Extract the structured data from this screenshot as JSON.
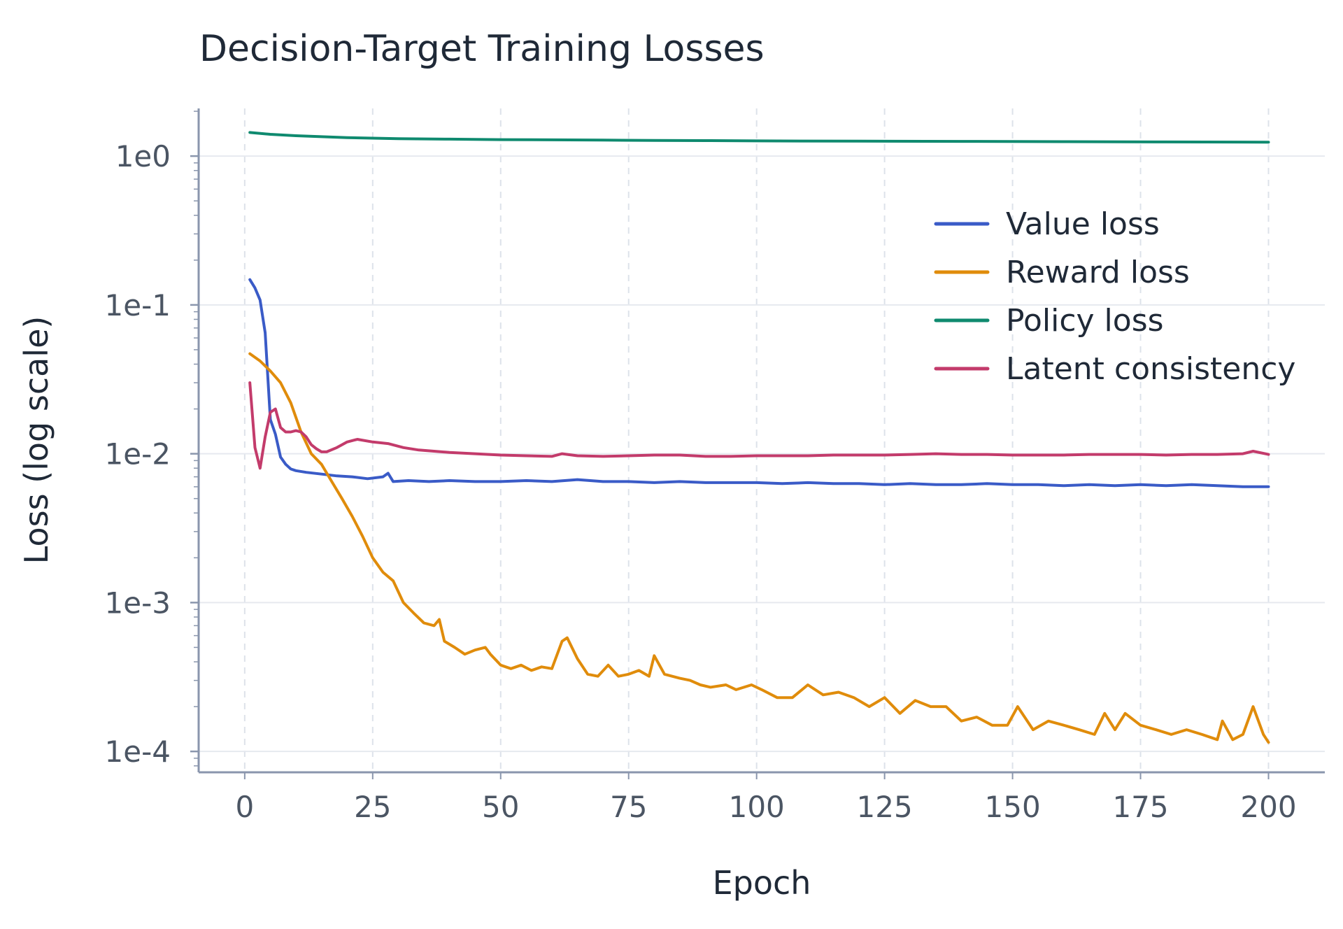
{
  "chart_data": {
    "type": "line",
    "title": "Decision-Target Training Losses",
    "xlabel": "Epoch",
    "ylabel": "Loss (log scale)",
    "yscale": "log",
    "xlim": [
      -9,
      211
    ],
    "ylim": [
      7.24e-05,
      2.09
    ],
    "grid": true,
    "legend_position": "top-right",
    "x_ticks": [
      0,
      25,
      50,
      75,
      100,
      125,
      150,
      175,
      200
    ],
    "x_tick_labels": [
      "0",
      "25",
      "50",
      "75",
      "100",
      "125",
      "150",
      "175",
      "200"
    ],
    "y_ticks": [
      1,
      0.1,
      0.01,
      0.001,
      0.0001
    ],
    "y_tick_labels": [
      "1e0",
      "1e-1",
      "1e-2",
      "1e-3",
      "1e-4"
    ],
    "series": [
      {
        "name": "Value loss",
        "color": "#3a5bc7",
        "points": [
          [
            1,
            0.148
          ],
          [
            2,
            0.13
          ],
          [
            3,
            0.108
          ],
          [
            4,
            0.065
          ],
          [
            5,
            0.017
          ],
          [
            6,
            0.0135
          ],
          [
            7,
            0.0095
          ],
          [
            8,
            0.0085
          ],
          [
            9,
            0.0079
          ],
          [
            10,
            0.0077
          ],
          [
            12,
            0.0075
          ],
          [
            15,
            0.0073
          ],
          [
            18,
            0.0071
          ],
          [
            21,
            0.007
          ],
          [
            24,
            0.0068
          ],
          [
            27,
            0.007
          ],
          [
            28,
            0.0074
          ],
          [
            29,
            0.0065
          ],
          [
            32,
            0.0066
          ],
          [
            36,
            0.0065
          ],
          [
            40,
            0.0066
          ],
          [
            45,
            0.0065
          ],
          [
            50,
            0.0065
          ],
          [
            55,
            0.0066
          ],
          [
            60,
            0.0065
          ],
          [
            65,
            0.0067
          ],
          [
            70,
            0.0065
          ],
          [
            75,
            0.0065
          ],
          [
            80,
            0.0064
          ],
          [
            85,
            0.0065
          ],
          [
            90,
            0.0064
          ],
          [
            95,
            0.0064
          ],
          [
            100,
            0.0064
          ],
          [
            105,
            0.0063
          ],
          [
            110,
            0.0064
          ],
          [
            115,
            0.0063
          ],
          [
            120,
            0.0063
          ],
          [
            125,
            0.0062
          ],
          [
            130,
            0.0063
          ],
          [
            135,
            0.0062
          ],
          [
            140,
            0.0062
          ],
          [
            145,
            0.0063
          ],
          [
            150,
            0.0062
          ],
          [
            155,
            0.0062
          ],
          [
            160,
            0.0061
          ],
          [
            165,
            0.0062
          ],
          [
            170,
            0.0061
          ],
          [
            175,
            0.0062
          ],
          [
            180,
            0.0061
          ],
          [
            185,
            0.0062
          ],
          [
            190,
            0.0061
          ],
          [
            195,
            0.006
          ],
          [
            200,
            0.006
          ]
        ]
      },
      {
        "name": "Reward loss",
        "color": "#e08c0b",
        "points": [
          [
            1,
            0.047
          ],
          [
            3,
            0.042
          ],
          [
            5,
            0.036
          ],
          [
            7,
            0.03
          ],
          [
            9,
            0.022
          ],
          [
            11,
            0.014
          ],
          [
            13,
            0.01
          ],
          [
            15,
            0.0085
          ],
          [
            17,
            0.0065
          ],
          [
            19,
            0.005
          ],
          [
            21,
            0.0038
          ],
          [
            23,
            0.0028
          ],
          [
            25,
            0.002
          ],
          [
            27,
            0.0016
          ],
          [
            29,
            0.0014
          ],
          [
            31,
            0.001
          ],
          [
            33,
            0.00085
          ],
          [
            35,
            0.00073
          ],
          [
            37,
            0.0007
          ],
          [
            38,
            0.00077
          ],
          [
            39,
            0.00055
          ],
          [
            41,
            0.0005
          ],
          [
            43,
            0.00045
          ],
          [
            45,
            0.00048
          ],
          [
            47,
            0.0005
          ],
          [
            48,
            0.00045
          ],
          [
            50,
            0.00038
          ],
          [
            52,
            0.00036
          ],
          [
            54,
            0.00038
          ],
          [
            56,
            0.00035
          ],
          [
            58,
            0.00037
          ],
          [
            60,
            0.00036
          ],
          [
            62,
            0.00055
          ],
          [
            63,
            0.00058
          ],
          [
            65,
            0.00042
          ],
          [
            67,
            0.00033
          ],
          [
            69,
            0.00032
          ],
          [
            71,
            0.00038
          ],
          [
            73,
            0.00032
          ],
          [
            75,
            0.00033
          ],
          [
            77,
            0.00035
          ],
          [
            79,
            0.00032
          ],
          [
            80,
            0.00044
          ],
          [
            82,
            0.00033
          ],
          [
            85,
            0.00031
          ],
          [
            87,
            0.0003
          ],
          [
            89,
            0.00028
          ],
          [
            91,
            0.00027
          ],
          [
            94,
            0.00028
          ],
          [
            96,
            0.00026
          ],
          [
            99,
            0.00028
          ],
          [
            101,
            0.00026
          ],
          [
            104,
            0.00023
          ],
          [
            107,
            0.00023
          ],
          [
            110,
            0.00028
          ],
          [
            113,
            0.00024
          ],
          [
            116,
            0.00025
          ],
          [
            119,
            0.00023
          ],
          [
            122,
            0.0002
          ],
          [
            125,
            0.00023
          ],
          [
            128,
            0.00018
          ],
          [
            131,
            0.00022
          ],
          [
            134,
            0.0002
          ],
          [
            137,
            0.0002
          ],
          [
            140,
            0.00016
          ],
          [
            143,
            0.00017
          ],
          [
            146,
            0.00015
          ],
          [
            149,
            0.00015
          ],
          [
            151,
            0.0002
          ],
          [
            154,
            0.00014
          ],
          [
            157,
            0.00016
          ],
          [
            160,
            0.00015
          ],
          [
            163,
            0.00014
          ],
          [
            166,
            0.00013
          ],
          [
            168,
            0.00018
          ],
          [
            170,
            0.00014
          ],
          [
            172,
            0.00018
          ],
          [
            175,
            0.00015
          ],
          [
            178,
            0.00014
          ],
          [
            181,
            0.00013
          ],
          [
            184,
            0.00014
          ],
          [
            187,
            0.00013
          ],
          [
            190,
            0.00012
          ],
          [
            191,
            0.00016
          ],
          [
            193,
            0.00012
          ],
          [
            195,
            0.00013
          ],
          [
            197,
            0.0002
          ],
          [
            199,
            0.00013
          ],
          [
            200,
            0.000115
          ]
        ]
      },
      {
        "name": "Policy loss",
        "color": "#0f8a6f",
        "points": [
          [
            1,
            1.44
          ],
          [
            5,
            1.4
          ],
          [
            10,
            1.37
          ],
          [
            15,
            1.35
          ],
          [
            20,
            1.33
          ],
          [
            30,
            1.31
          ],
          [
            40,
            1.3
          ],
          [
            50,
            1.29
          ],
          [
            60,
            1.285
          ],
          [
            70,
            1.28
          ],
          [
            80,
            1.275
          ],
          [
            90,
            1.27
          ],
          [
            100,
            1.265
          ],
          [
            120,
            1.26
          ],
          [
            140,
            1.255
          ],
          [
            160,
            1.25
          ],
          [
            180,
            1.245
          ],
          [
            200,
            1.24
          ]
        ]
      },
      {
        "name": "Latent consistency",
        "color": "#c33b6b",
        "points": [
          [
            1,
            0.03
          ],
          [
            2,
            0.011
          ],
          [
            3,
            0.008
          ],
          [
            4,
            0.013
          ],
          [
            5,
            0.019
          ],
          [
            6,
            0.02
          ],
          [
            7,
            0.015
          ],
          [
            8,
            0.014
          ],
          [
            9,
            0.014
          ],
          [
            10,
            0.0143
          ],
          [
            11,
            0.014
          ],
          [
            12,
            0.013
          ],
          [
            13,
            0.0115
          ],
          [
            14,
            0.0108
          ],
          [
            15,
            0.0103
          ],
          [
            16,
            0.0103
          ],
          [
            18,
            0.011
          ],
          [
            20,
            0.012
          ],
          [
            22,
            0.0125
          ],
          [
            25,
            0.012
          ],
          [
            28,
            0.0117
          ],
          [
            31,
            0.011
          ],
          [
            34,
            0.0106
          ],
          [
            37,
            0.0104
          ],
          [
            40,
            0.0102
          ],
          [
            45,
            0.01
          ],
          [
            50,
            0.0098
          ],
          [
            55,
            0.0097
          ],
          [
            60,
            0.0096
          ],
          [
            62,
            0.01
          ],
          [
            65,
            0.0097
          ],
          [
            70,
            0.0096
          ],
          [
            75,
            0.0097
          ],
          [
            80,
            0.0098
          ],
          [
            85,
            0.0098
          ],
          [
            90,
            0.0096
          ],
          [
            95,
            0.0096
          ],
          [
            100,
            0.0097
          ],
          [
            105,
            0.0097
          ],
          [
            110,
            0.0097
          ],
          [
            115,
            0.0098
          ],
          [
            120,
            0.0098
          ],
          [
            125,
            0.0098
          ],
          [
            130,
            0.0099
          ],
          [
            135,
            0.01
          ],
          [
            140,
            0.0099
          ],
          [
            145,
            0.0099
          ],
          [
            150,
            0.0098
          ],
          [
            155,
            0.0098
          ],
          [
            160,
            0.0098
          ],
          [
            165,
            0.0099
          ],
          [
            170,
            0.0099
          ],
          [
            175,
            0.0099
          ],
          [
            180,
            0.0098
          ],
          [
            185,
            0.0099
          ],
          [
            190,
            0.0099
          ],
          [
            195,
            0.01
          ],
          [
            197,
            0.0104
          ],
          [
            200,
            0.0099
          ]
        ]
      }
    ]
  }
}
